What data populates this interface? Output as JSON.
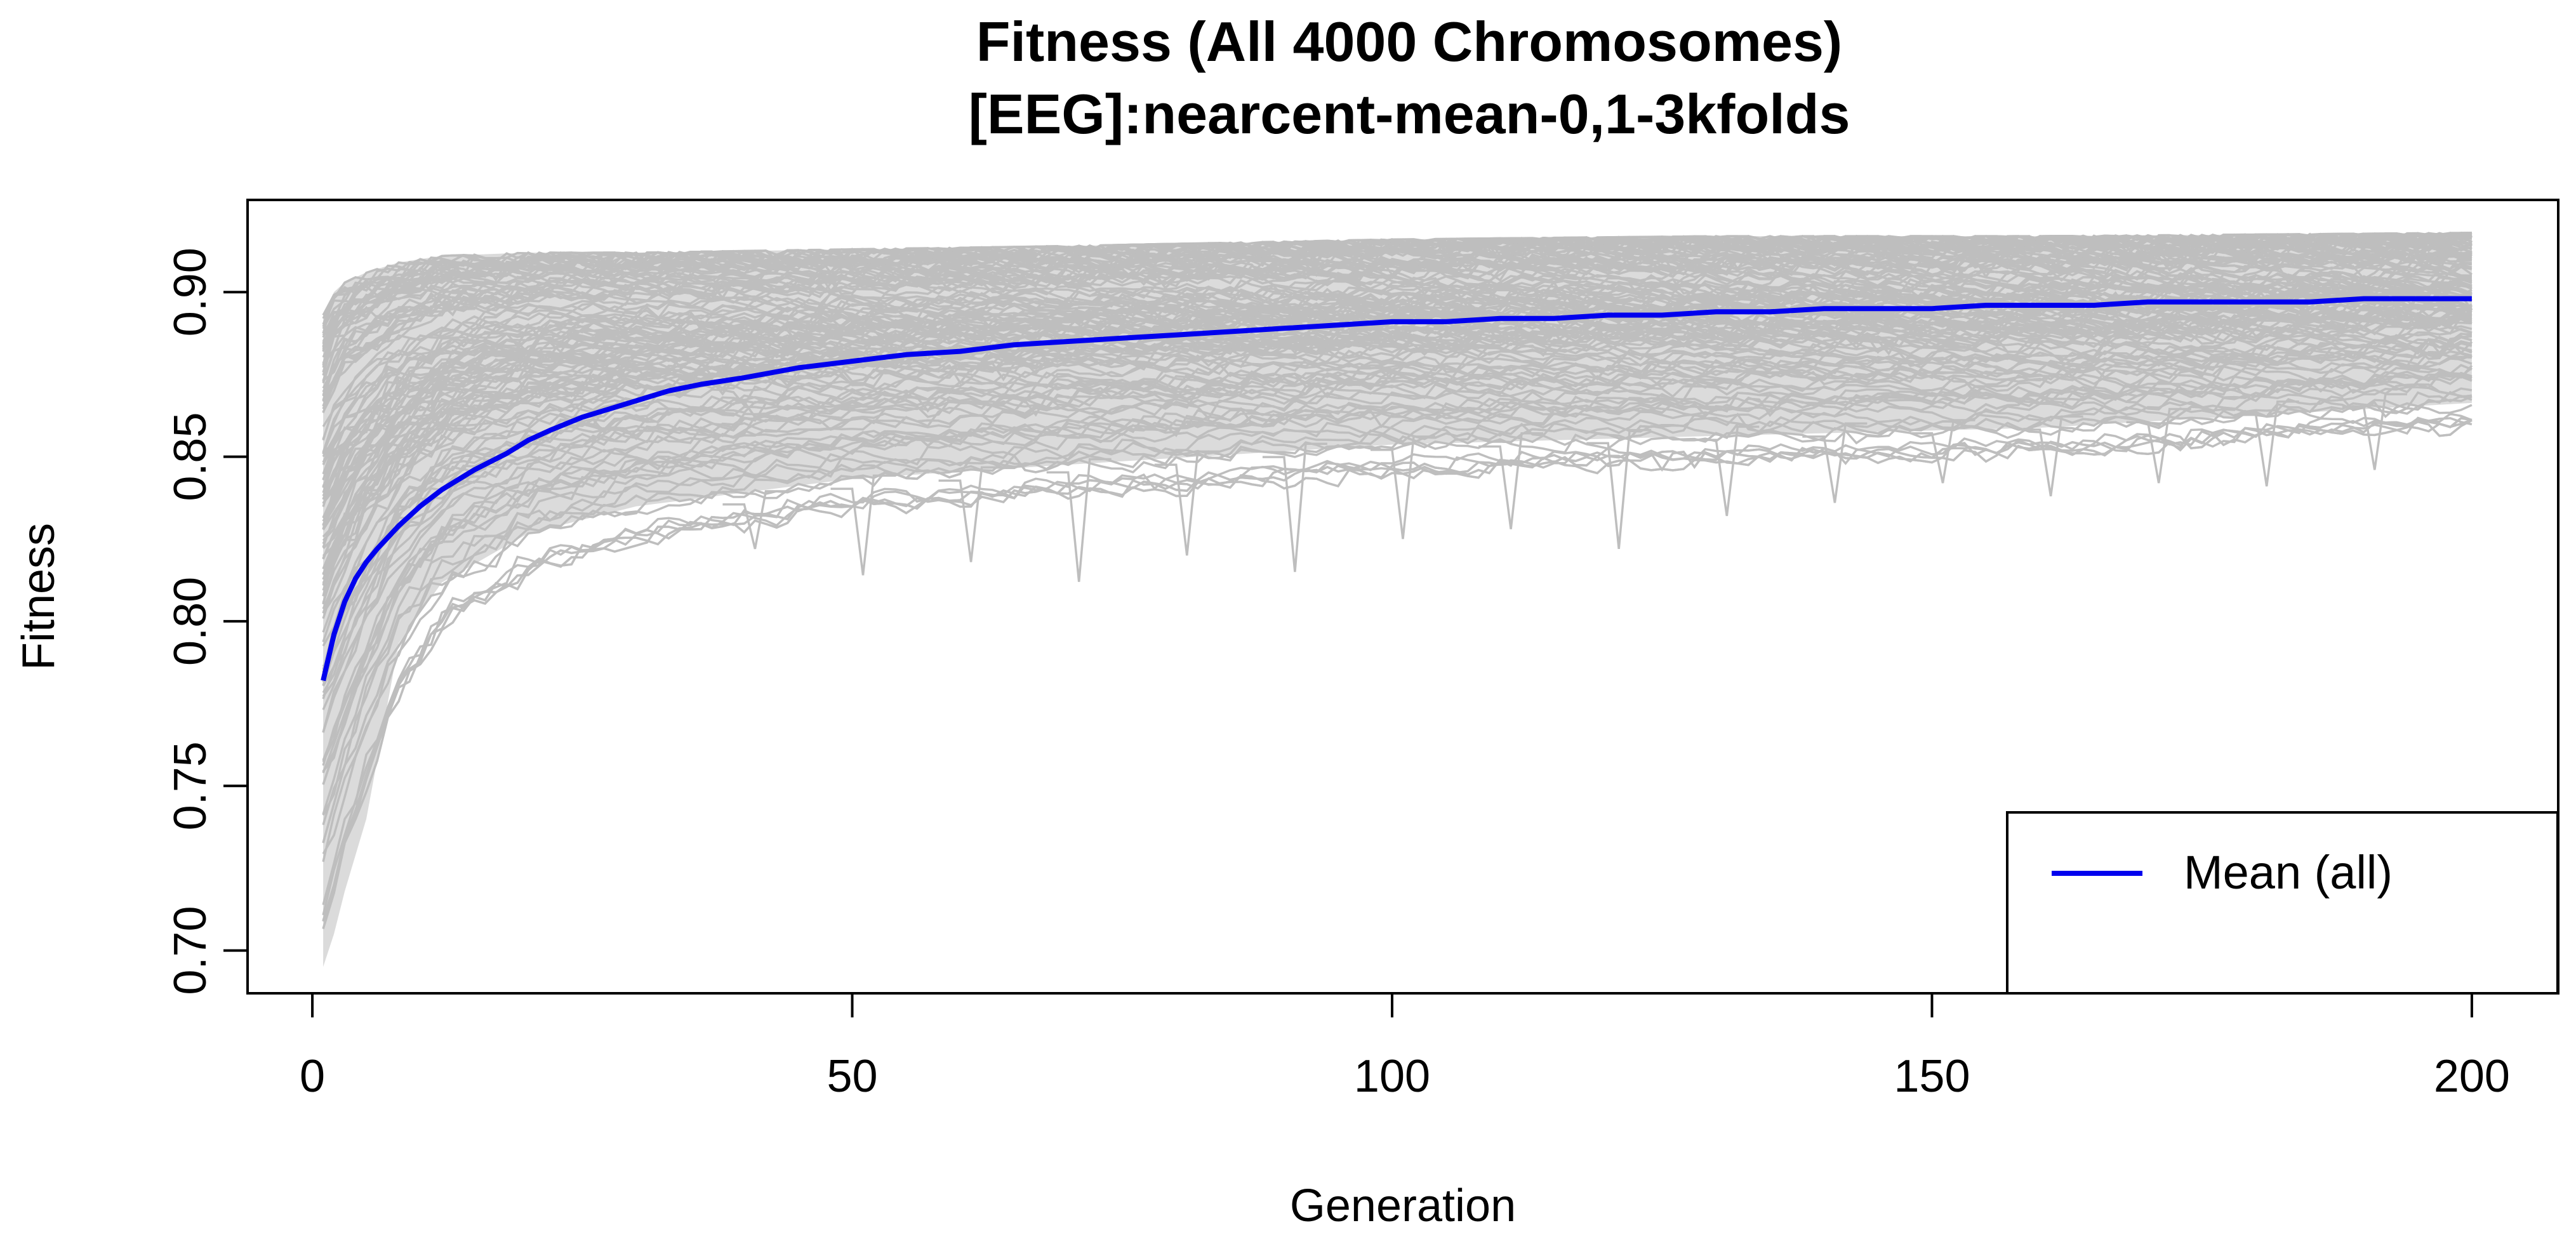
{
  "chart_data": {
    "type": "line",
    "title": "Fitness  (All 4000 Chromosomes)",
    "subtitle": "[EEG]:nearcent-mean-0,1-3kfolds",
    "xlabel": "Generation",
    "ylabel": "Fitness",
    "xlim": [
      -6,
      208
    ],
    "ylim": [
      0.687,
      0.928
    ],
    "x_ticks": [
      0,
      50,
      100,
      150,
      200
    ],
    "x_tick_labels": [
      "0",
      "50",
      "100",
      "150",
      "200"
    ],
    "y_ticks": [
      0.7,
      0.75,
      0.8,
      0.85,
      0.9
    ],
    "y_tick_labels": [
      "0.70",
      "0.75",
      "0.80",
      "0.85",
      "0.90"
    ],
    "grid": false,
    "legend": {
      "position": "bottom-right",
      "entries": [
        {
          "label": "Mean (all)",
          "color": "#0000EE"
        }
      ]
    },
    "series": [
      {
        "name": "Mean (all)",
        "color": "#0000EE",
        "x": [
          1,
          2,
          3,
          4,
          5,
          6,
          8,
          10,
          12,
          15,
          18,
          20,
          22,
          25,
          28,
          30,
          33,
          36,
          40,
          45,
          50,
          55,
          60,
          65,
          70,
          75,
          80,
          85,
          90,
          95,
          100,
          105,
          110,
          115,
          120,
          125,
          130,
          135,
          140,
          145,
          150,
          155,
          160,
          165,
          170,
          175,
          180,
          185,
          190,
          195,
          200
        ],
        "y": [
          0.782,
          0.796,
          0.806,
          0.813,
          0.818,
          0.822,
          0.829,
          0.835,
          0.84,
          0.846,
          0.851,
          0.855,
          0.858,
          0.862,
          0.865,
          0.867,
          0.87,
          0.872,
          0.874,
          0.877,
          0.879,
          0.881,
          0.882,
          0.884,
          0.885,
          0.886,
          0.887,
          0.888,
          0.889,
          0.89,
          0.891,
          0.891,
          0.892,
          0.892,
          0.893,
          0.893,
          0.894,
          0.894,
          0.895,
          0.895,
          0.895,
          0.896,
          0.896,
          0.896,
          0.897,
          0.897,
          0.897,
          0.897,
          0.898,
          0.898,
          0.898
        ]
      }
    ],
    "background_traces": {
      "name": "All chromosomes",
      "color": "#BEBEBE",
      "count_represented": 4000,
      "x": [
        1,
        2,
        3,
        5,
        8,
        12,
        20,
        30,
        50,
        70,
        100,
        130,
        160,
        200
      ],
      "upper_y": [
        0.893,
        0.9,
        0.903,
        0.906,
        0.909,
        0.911,
        0.912,
        0.912,
        0.913,
        0.914,
        0.916,
        0.917,
        0.917,
        0.918
      ],
      "lower_y": [
        0.695,
        0.705,
        0.718,
        0.74,
        0.768,
        0.79,
        0.808,
        0.818,
        0.828,
        0.833,
        0.84,
        0.843,
        0.846,
        0.855
      ],
      "dips": [
        {
          "x": 41,
          "y": 0.822
        },
        {
          "x": 51,
          "y": 0.814
        },
        {
          "x": 61,
          "y": 0.818
        },
        {
          "x": 71,
          "y": 0.812
        },
        {
          "x": 81,
          "y": 0.82
        },
        {
          "x": 91,
          "y": 0.815
        },
        {
          "x": 101,
          "y": 0.825
        },
        {
          "x": 111,
          "y": 0.828
        },
        {
          "x": 121,
          "y": 0.822
        },
        {
          "x": 131,
          "y": 0.832
        },
        {
          "x": 141,
          "y": 0.836
        },
        {
          "x": 151,
          "y": 0.842
        },
        {
          "x": 161,
          "y": 0.838
        },
        {
          "x": 171,
          "y": 0.842
        },
        {
          "x": 181,
          "y": 0.841
        },
        {
          "x": 191,
          "y": 0.846
        }
      ]
    }
  }
}
